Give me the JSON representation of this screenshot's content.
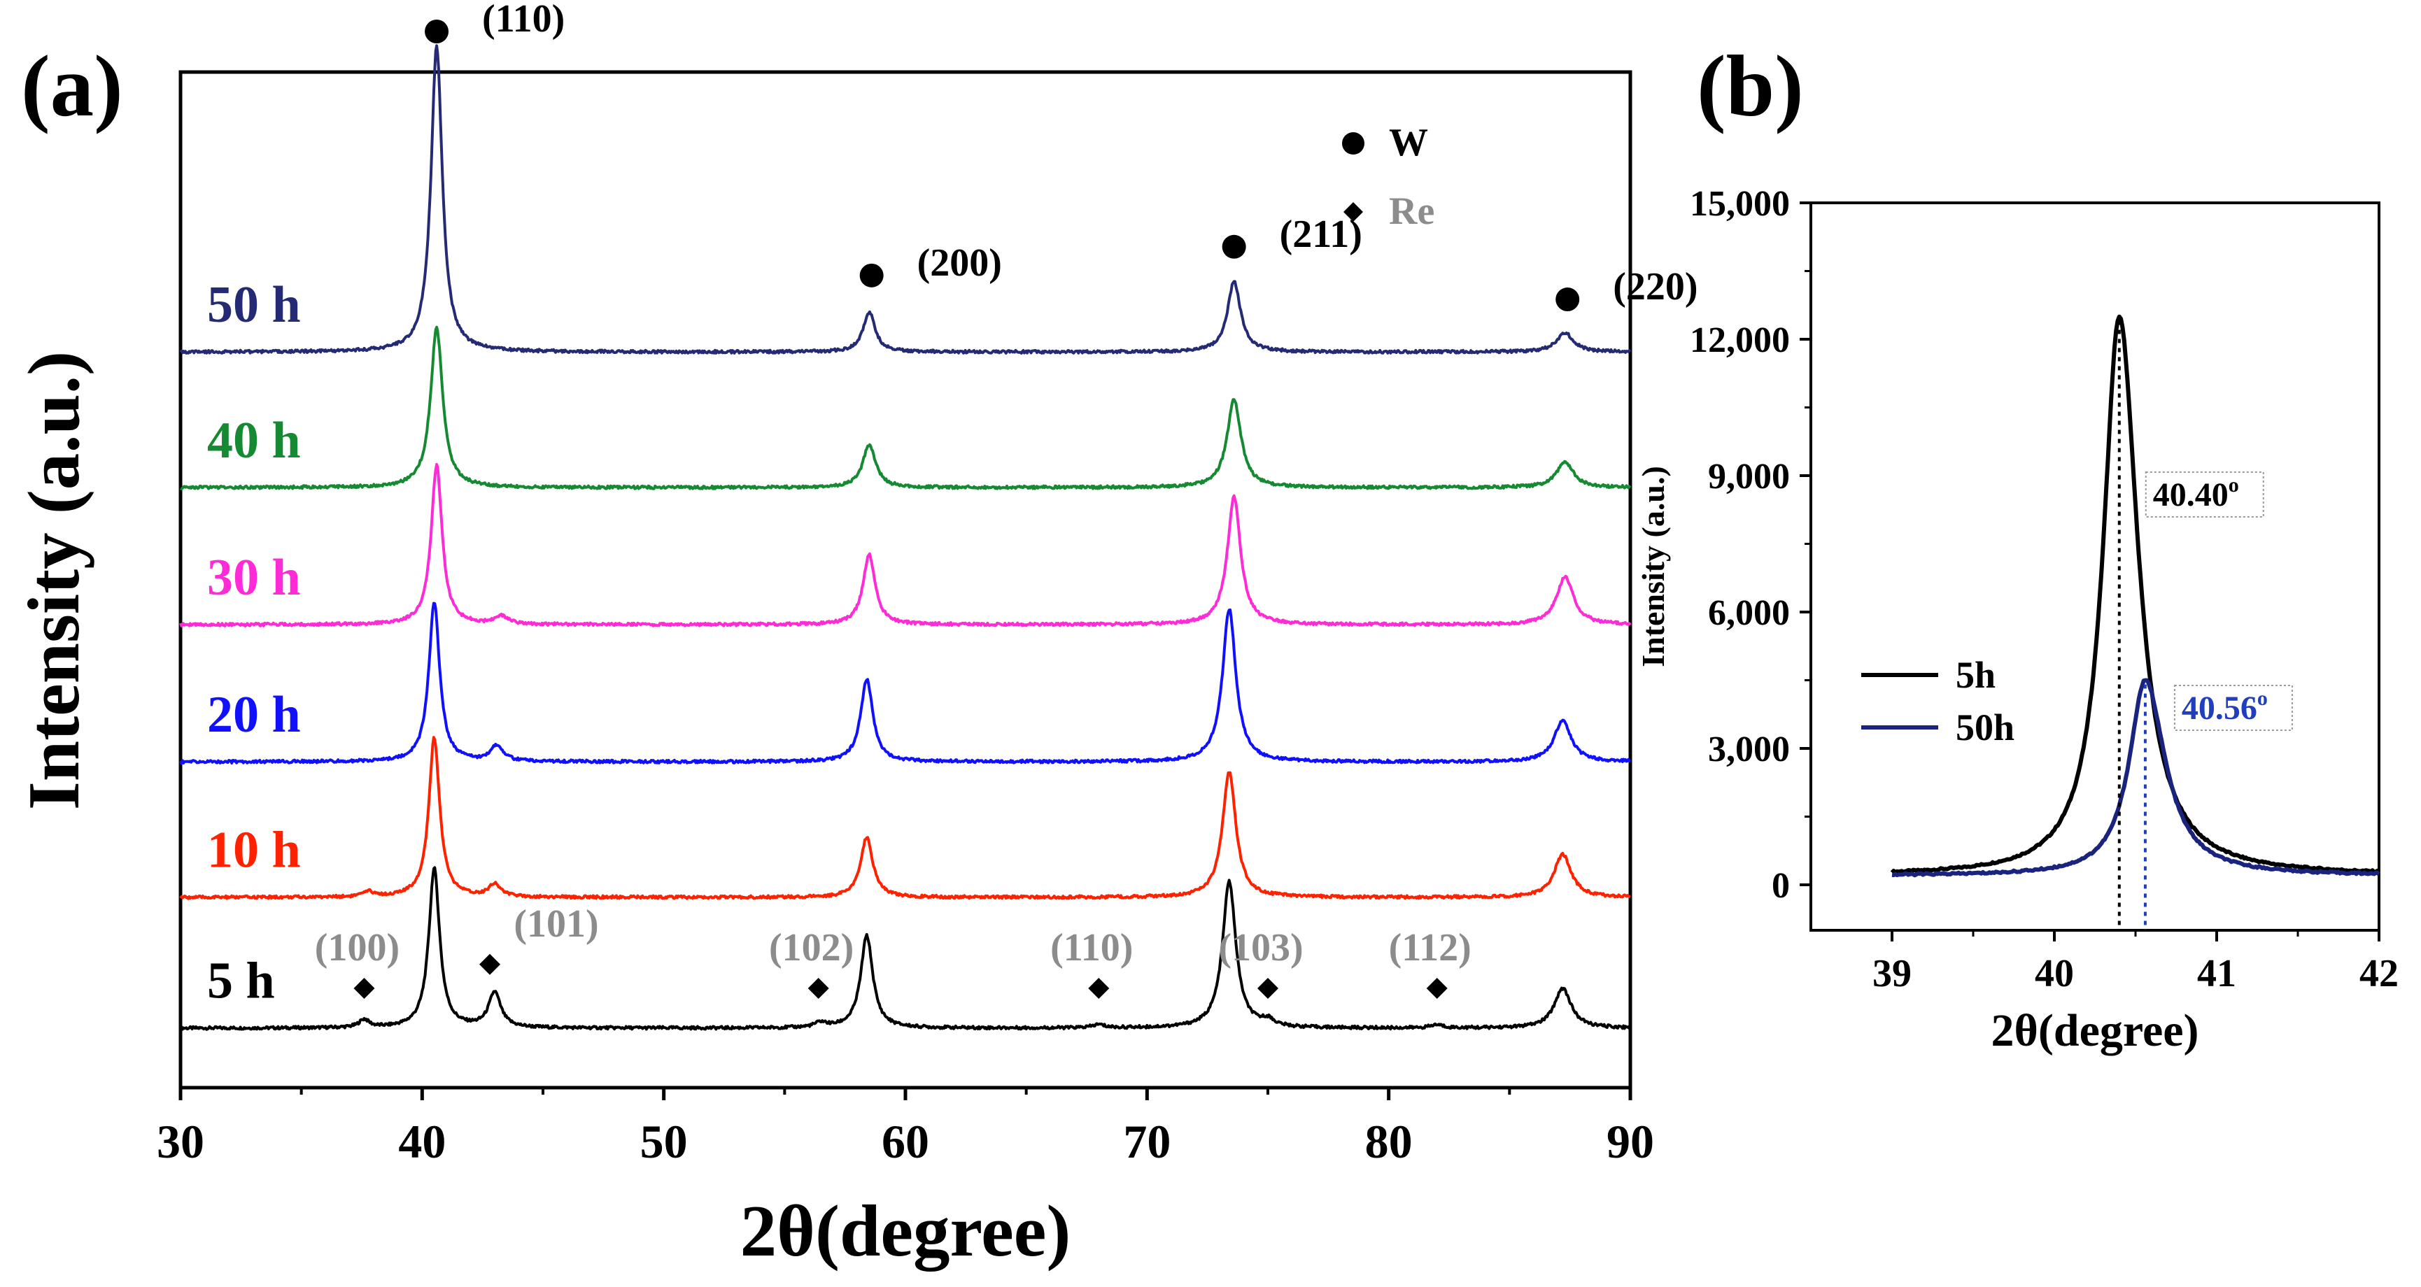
{
  "chart_data": [
    {
      "panel": "(a)",
      "type": "line",
      "xlabel": "2θ(degree)",
      "ylabel": "Intensity (a.u.)",
      "xlim": [
        30,
        90
      ],
      "x_ticks": [
        "30",
        "40",
        "50",
        "60",
        "70",
        "80",
        "90"
      ],
      "legend": [
        {
          "symbol": "circle",
          "label": "W",
          "color": "#000000"
        },
        {
          "symbol": "diamond",
          "label": "Re",
          "color": "#8c8c8c"
        }
      ],
      "series": [
        {
          "name": "5 h",
          "color": "#000000",
          "baseline": 0.0,
          "peaks": [
            [
              37.6,
              0.05,
              0.25
            ],
            [
              40.5,
              1.0,
              0.27
            ],
            [
              43.0,
              0.22,
              0.3
            ],
            [
              56.5,
              0.03,
              0.3
            ],
            [
              58.4,
              0.58,
              0.3
            ],
            [
              68.0,
              0.02,
              0.3
            ],
            [
              73.4,
              0.92,
              0.33
            ],
            [
              75.0,
              0.04,
              0.3
            ],
            [
              82.0,
              0.02,
              0.3
            ],
            [
              87.2,
              0.25,
              0.42
            ]
          ]
        },
        {
          "name": "10 h",
          "color": "#ff2200",
          "baseline": 0.82,
          "peaks": [
            [
              37.8,
              0.03,
              0.3
            ],
            [
              40.5,
              1.0,
              0.27
            ],
            [
              43.0,
              0.08,
              0.3
            ],
            [
              58.4,
              0.38,
              0.3
            ],
            [
              73.4,
              0.79,
              0.33
            ],
            [
              87.2,
              0.27,
              0.42
            ]
          ]
        },
        {
          "name": "20 h",
          "color": "#1010ff",
          "baseline": 1.67,
          "peaks": [
            [
              40.5,
              1.0,
              0.27
            ],
            [
              43.1,
              0.1,
              0.3
            ],
            [
              58.4,
              0.52,
              0.3
            ],
            [
              73.4,
              0.96,
              0.33
            ],
            [
              87.2,
              0.26,
              0.42
            ]
          ]
        },
        {
          "name": "30 h",
          "color": "#ff2bd6",
          "baseline": 2.53,
          "peaks": [
            [
              40.6,
              1.0,
              0.27
            ],
            [
              43.3,
              0.05,
              0.3
            ],
            [
              58.5,
              0.44,
              0.3
            ],
            [
              73.6,
              0.8,
              0.33
            ],
            [
              87.3,
              0.3,
              0.42
            ]
          ]
        },
        {
          "name": "40 h",
          "color": "#158a32",
          "baseline": 3.39,
          "peaks": [
            [
              40.6,
              1.0,
              0.3
            ],
            [
              58.5,
              0.27,
              0.32
            ],
            [
              73.6,
              0.55,
              0.35
            ],
            [
              87.3,
              0.16,
              0.42
            ]
          ]
        },
        {
          "name": "50 h",
          "color": "#242a73",
          "baseline": 4.24,
          "peaks": [
            [
              40.6,
              1.92,
              0.28
            ],
            [
              58.5,
              0.25,
              0.3
            ],
            [
              73.6,
              0.44,
              0.33
            ],
            [
              87.3,
              0.12,
              0.42
            ]
          ]
        }
      ],
      "w_peak_labels": [
        {
          "label": "(110)",
          "x": 40.6,
          "y": 6.25
        },
        {
          "label": "(200)",
          "x": 58.6,
          "y": 4.72
        },
        {
          "label": "(211)",
          "x": 73.6,
          "y": 4.9
        },
        {
          "label": "(220)",
          "x": 87.4,
          "y": 4.57
        }
      ],
      "re_peak_labels": [
        {
          "label": "(100)",
          "x": 37.6,
          "y": 0.25
        },
        {
          "label": "(101)",
          "x": 42.8,
          "y": 0.4
        },
        {
          "label": "(102)",
          "x": 56.4,
          "y": 0.25
        },
        {
          "label": "(110)",
          "x": 68.0,
          "y": 0.25
        },
        {
          "label": "(103)",
          "x": 75.0,
          "y": 0.25
        },
        {
          "label": "(112)",
          "x": 82.0,
          "y": 0.25
        }
      ]
    },
    {
      "panel": "(b)",
      "type": "line",
      "xlabel": "2θ(degree)",
      "ylabel": "Intensity (a.u.)",
      "xlim": [
        38.5,
        42
      ],
      "ylim": [
        -1000,
        15000
      ],
      "x_ticks": [
        "39",
        "40",
        "41",
        "42"
      ],
      "y_ticks": [
        "0",
        "3,000",
        "6,000",
        "9,000",
        "12,000",
        "15,000"
      ],
      "series": [
        {
          "name": "5h",
          "color": "#000000",
          "peak_x": 40.4,
          "peak_y": 12500,
          "hwhm_left": 0.12,
          "hwhm_right": 0.14
        },
        {
          "name": "50h",
          "color": "#1a237e",
          "peak_x": 40.56,
          "peak_y": 4500,
          "hwhm_left": 0.12,
          "hwhm_right": 0.15
        }
      ],
      "annotations": [
        {
          "text": "40.40",
          "sup": "o",
          "x": 40.4,
          "color": "#000000"
        },
        {
          "text": "40.56",
          "sup": "o",
          "x": 40.56,
          "color": "#1f3fbf"
        }
      ]
    }
  ],
  "panel_labels": {
    "a": "(a)",
    "b": "(b)"
  }
}
